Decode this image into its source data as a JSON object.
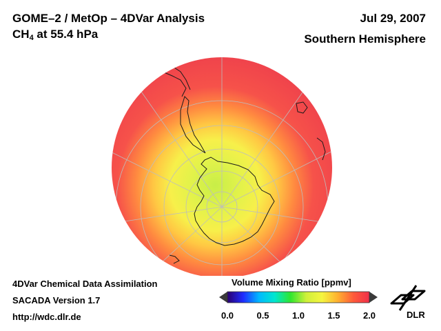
{
  "header": {
    "title_line1": "GOME–2 / MetOp – 4DVar Analysis",
    "species_main": "CH",
    "species_sub": "4",
    "species_rest": " at 55.4 hPa",
    "date": "Jul 29, 2007",
    "hemisphere": "Southern Hemisphere"
  },
  "footer": {
    "line1": "4DVar Chemical Data Assimilation",
    "line2": "SACADA Version 1.7",
    "line3": "http://wdc.dlr.de"
  },
  "colorbar": {
    "title": "Volume Mixing Ratio [ppmv]",
    "min": 0.0,
    "max": 2.0,
    "ticks": [
      "0.0",
      "0.5",
      "1.0",
      "1.5",
      "2.0"
    ],
    "colors": [
      "#2a0070",
      "#1f2cff",
      "#00b8ff",
      "#00e6d0",
      "#2fe62f",
      "#cff03a",
      "#f5f540",
      "#ffb030",
      "#ff5a3a",
      "#f0304a"
    ]
  },
  "logo": {
    "text": "DLR"
  },
  "map": {
    "projection": "orthographic south polar",
    "pole_value_ppmv": 1.05,
    "edge_value_ppmv": 1.9
  }
}
